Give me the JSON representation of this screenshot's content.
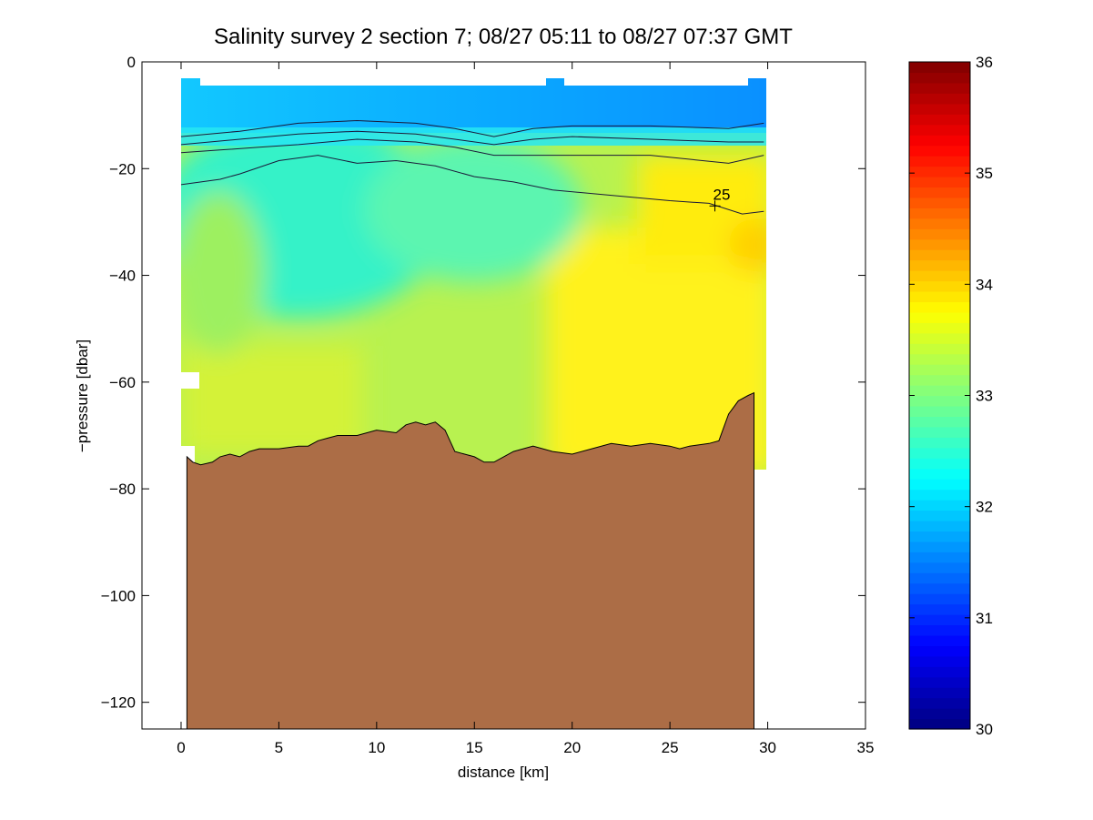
{
  "chart_data": {
    "type": "heatmap",
    "title": "Salinity survey 2 section 7; 08/27 05:11 to 08/27 07:37 GMT",
    "xlabel": "distance [km]",
    "ylabel": "−pressure [dbar]",
    "xlim": [
      -2,
      35
    ],
    "ylim": [
      -125,
      0
    ],
    "x_ticks": [
      0,
      5,
      10,
      15,
      20,
      25,
      30,
      35
    ],
    "y_ticks": [
      0,
      -20,
      -40,
      -60,
      -80,
      -100,
      -120
    ],
    "x_tick_labels": [
      "0",
      "5",
      "10",
      "15",
      "20",
      "25",
      "30",
      "35"
    ],
    "y_tick_labels": [
      "0",
      "−20",
      "−40",
      "−60",
      "−80",
      "−100",
      "−120"
    ],
    "colorbar": {
      "range": [
        30,
        36
      ],
      "ticks": [
        30,
        31,
        32,
        33,
        34,
        35,
        36
      ],
      "tick_labels": [
        "30",
        "31",
        "32",
        "33",
        "34",
        "35",
        "36"
      ],
      "colormap": "jet"
    },
    "annotation": {
      "text": "25",
      "x": 27.3,
      "y": -27
    },
    "contours": [
      {
        "level": 32.25,
        "points": [
          [
            0,
            -14
          ],
          [
            3,
            -13
          ],
          [
            6,
            -11.5
          ],
          [
            9,
            -11
          ],
          [
            12,
            -11.5
          ],
          [
            14,
            -12.5
          ],
          [
            16,
            -14
          ],
          [
            18,
            -12.5
          ],
          [
            20,
            -12
          ],
          [
            24,
            -12
          ],
          [
            28,
            -12.5
          ],
          [
            29.8,
            -11.5
          ]
        ]
      },
      {
        "level": 32.5,
        "points": [
          [
            0,
            -15.5
          ],
          [
            3,
            -14.5
          ],
          [
            6,
            -13.5
          ],
          [
            9,
            -13
          ],
          [
            12,
            -13.5
          ],
          [
            14,
            -14.5
          ],
          [
            16,
            -15.5
          ],
          [
            18,
            -14.5
          ],
          [
            20,
            -14
          ],
          [
            24,
            -14.5
          ],
          [
            28,
            -15
          ],
          [
            29.8,
            -15
          ]
        ]
      },
      {
        "level": 32.75,
        "points": [
          [
            0,
            -17
          ],
          [
            2,
            -16.5
          ],
          [
            4,
            -16
          ],
          [
            6,
            -15.5
          ],
          [
            9,
            -14.5
          ],
          [
            12,
            -15
          ],
          [
            14,
            -16
          ],
          [
            16,
            -17.5
          ],
          [
            20,
            -17.5
          ],
          [
            24,
            -17.5
          ],
          [
            28,
            -19
          ],
          [
            29.8,
            -17.5
          ]
        ]
      },
      {
        "level": 33.0,
        "points": [
          [
            0,
            -23
          ],
          [
            2,
            -22
          ],
          [
            3,
            -21
          ],
          [
            5,
            -18.5
          ],
          [
            7,
            -17.5
          ],
          [
            9,
            -19
          ],
          [
            11,
            -18.5
          ],
          [
            13,
            -19.5
          ],
          [
            15,
            -21.5
          ],
          [
            17,
            -22.5
          ],
          [
            19,
            -24
          ],
          [
            22,
            -25
          ],
          [
            25,
            -26
          ],
          [
            27,
            -26.5
          ],
          [
            28.7,
            -28.5
          ],
          [
            29.8,
            -28
          ]
        ]
      }
    ],
    "bathymetry": [
      [
        0.3,
        -74
      ],
      [
        0.6,
        -75
      ],
      [
        1,
        -75.5
      ],
      [
        1.6,
        -75
      ],
      [
        2,
        -74
      ],
      [
        2.5,
        -73.5
      ],
      [
        3,
        -74
      ],
      [
        3.5,
        -73
      ],
      [
        4,
        -72.5
      ],
      [
        5,
        -72.5
      ],
      [
        6,
        -72
      ],
      [
        6.5,
        -72
      ],
      [
        7,
        -71
      ],
      [
        7.5,
        -70.5
      ],
      [
        8,
        -70
      ],
      [
        9,
        -70
      ],
      [
        10,
        -69
      ],
      [
        11,
        -69.5
      ],
      [
        11.5,
        -68
      ],
      [
        12,
        -67.5
      ],
      [
        12.5,
        -68
      ],
      [
        13,
        -67.5
      ],
      [
        13.5,
        -69
      ],
      [
        14,
        -73
      ],
      [
        14.5,
        -73.5
      ],
      [
        15,
        -74
      ],
      [
        15.5,
        -75
      ],
      [
        16,
        -75
      ],
      [
        16.5,
        -74
      ],
      [
        17,
        -73
      ],
      [
        18,
        -72
      ],
      [
        19,
        -73
      ],
      [
        20,
        -73.5
      ],
      [
        21,
        -72.5
      ],
      [
        22,
        -71.5
      ],
      [
        23,
        -72
      ],
      [
        24,
        -71.5
      ],
      [
        25,
        -72
      ],
      [
        25.5,
        -72.5
      ],
      [
        26,
        -72
      ],
      [
        27,
        -71.5
      ],
      [
        27.5,
        -71
      ],
      [
        28,
        -66
      ],
      [
        28.5,
        -63.5
      ],
      [
        29,
        -62.5
      ],
      [
        29.3,
        -62
      ]
    ]
  }
}
